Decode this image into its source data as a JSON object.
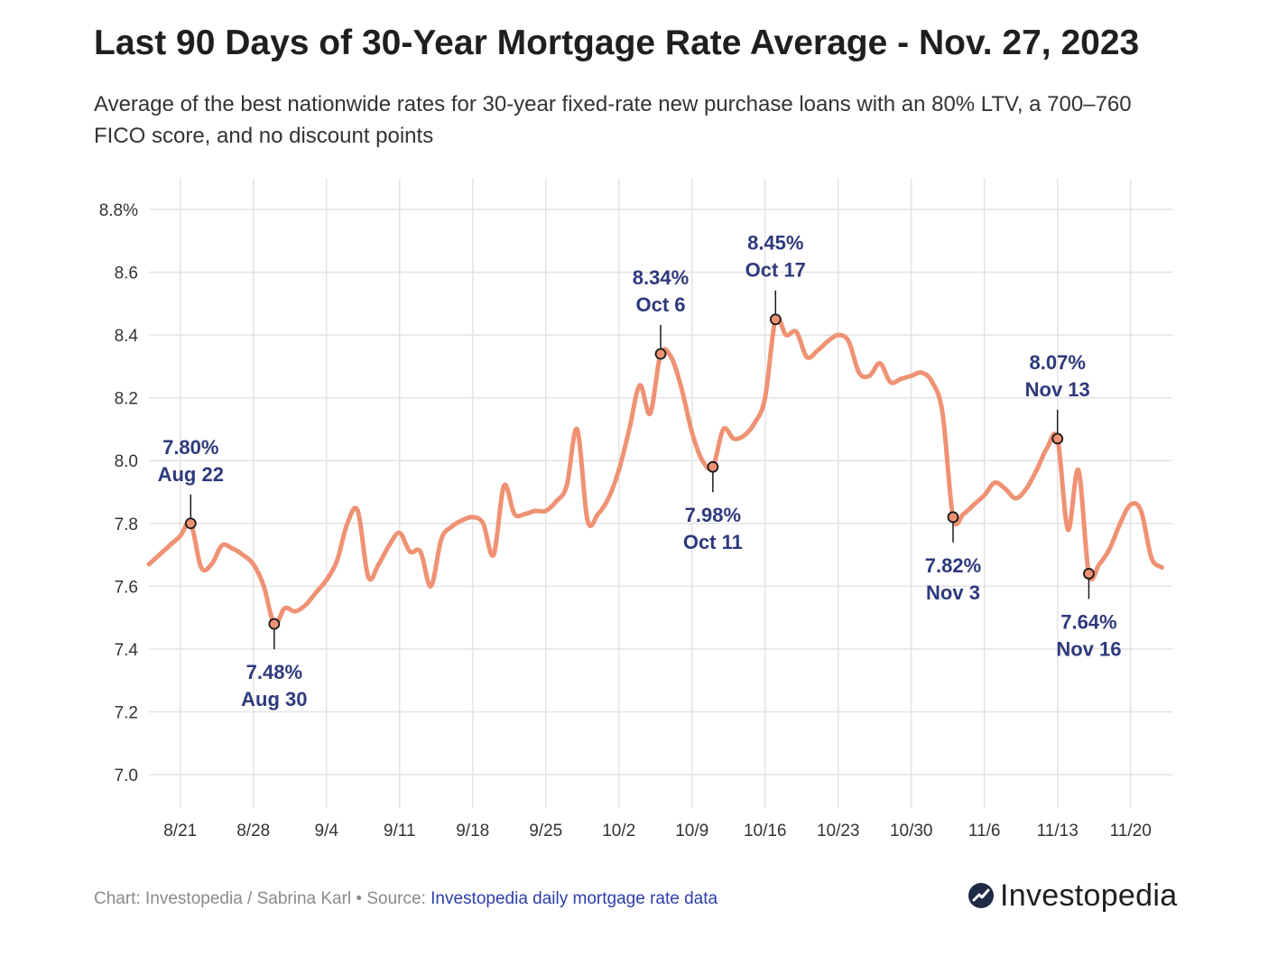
{
  "title": "Last 90 Days of 30-Year Mortgage Rate Average - Nov. 27, 2023",
  "subtitle": "Average of the best nationwide rates for 30-year fixed-rate new purchase loans with an 80% LTV, a 700–760 FICO score, and no discount points",
  "footer": {
    "credit": "Chart: Investopedia / Sabrina Karl • Source: ",
    "source_link": "Investopedia daily mortgage rate data"
  },
  "logo": {
    "text": "Investopedia",
    "icon": "investopedia-logo-icon"
  },
  "chart_data": {
    "type": "line",
    "x_start": "2023-08-18",
    "x_end": "2023-11-24",
    "ylim": [
      7.0,
      8.8
    ],
    "yticks": [
      {
        "value": 7.0,
        "label": "7.0"
      },
      {
        "value": 7.2,
        "label": "7.2"
      },
      {
        "value": 7.4,
        "label": "7.4"
      },
      {
        "value": 7.6,
        "label": "7.6"
      },
      {
        "value": 7.8,
        "label": "7.8"
      },
      {
        "value": 8.0,
        "label": "8.0"
      },
      {
        "value": 8.2,
        "label": "8.2"
      },
      {
        "value": 8.4,
        "label": "8.4"
      },
      {
        "value": 8.6,
        "label": "8.6"
      },
      {
        "value": 8.8,
        "label": "8.8%"
      }
    ],
    "xticks": [
      {
        "date": "2023-08-21",
        "label": "8/21"
      },
      {
        "date": "2023-08-28",
        "label": "8/28"
      },
      {
        "date": "2023-09-04",
        "label": "9/4"
      },
      {
        "date": "2023-09-11",
        "label": "9/11"
      },
      {
        "date": "2023-09-18",
        "label": "9/18"
      },
      {
        "date": "2023-09-25",
        "label": "9/25"
      },
      {
        "date": "2023-10-02",
        "label": "10/2"
      },
      {
        "date": "2023-10-09",
        "label": "10/9"
      },
      {
        "date": "2023-10-16",
        "label": "10/16"
      },
      {
        "date": "2023-10-23",
        "label": "10/23"
      },
      {
        "date": "2023-10-30",
        "label": "10/30"
      },
      {
        "date": "2023-11-06",
        "label": "11/6"
      },
      {
        "date": "2023-11-13",
        "label": "11/13"
      },
      {
        "date": "2023-11-20",
        "label": "11/20"
      }
    ],
    "grid": true,
    "line_color": "#ef9274",
    "annotation_color": "#2e3a7c",
    "series": [
      {
        "points": [
          [
            "2023-08-18",
            7.67
          ],
          [
            "2023-08-19",
            7.7
          ],
          [
            "2023-08-20",
            7.73
          ],
          [
            "2023-08-21",
            7.76
          ],
          [
            "2023-08-22",
            7.8
          ],
          [
            "2023-08-23",
            7.66
          ],
          [
            "2023-08-24",
            7.67
          ],
          [
            "2023-08-25",
            7.73
          ],
          [
            "2023-08-26",
            7.72
          ],
          [
            "2023-08-27",
            7.7
          ],
          [
            "2023-08-28",
            7.67
          ],
          [
            "2023-08-29",
            7.6
          ],
          [
            "2023-08-30",
            7.48
          ],
          [
            "2023-08-31",
            7.53
          ],
          [
            "2023-09-01",
            7.52
          ],
          [
            "2023-09-02",
            7.54
          ],
          [
            "2023-09-03",
            7.58
          ],
          [
            "2023-09-04",
            7.62
          ],
          [
            "2023-09-05",
            7.68
          ],
          [
            "2023-09-06",
            7.8
          ],
          [
            "2023-09-07",
            7.84
          ],
          [
            "2023-09-08",
            7.63
          ],
          [
            "2023-09-09",
            7.67
          ],
          [
            "2023-09-10",
            7.73
          ],
          [
            "2023-09-11",
            7.77
          ],
          [
            "2023-09-12",
            7.71
          ],
          [
            "2023-09-13",
            7.71
          ],
          [
            "2023-09-14",
            7.6
          ],
          [
            "2023-09-15",
            7.75
          ],
          [
            "2023-09-16",
            7.79
          ],
          [
            "2023-09-17",
            7.81
          ],
          [
            "2023-09-18",
            7.82
          ],
          [
            "2023-09-19",
            7.8
          ],
          [
            "2023-09-20",
            7.7
          ],
          [
            "2023-09-21",
            7.92
          ],
          [
            "2023-09-22",
            7.83
          ],
          [
            "2023-09-23",
            7.83
          ],
          [
            "2023-09-24",
            7.84
          ],
          [
            "2023-09-25",
            7.84
          ],
          [
            "2023-09-26",
            7.87
          ],
          [
            "2023-09-27",
            7.92
          ],
          [
            "2023-09-28",
            8.1
          ],
          [
            "2023-09-29",
            7.81
          ],
          [
            "2023-09-30",
            7.83
          ],
          [
            "2023-10-01",
            7.88
          ],
          [
            "2023-10-02",
            7.97
          ],
          [
            "2023-10-03",
            8.1
          ],
          [
            "2023-10-04",
            8.24
          ],
          [
            "2023-10-05",
            8.15
          ],
          [
            "2023-10-06",
            8.34
          ],
          [
            "2023-10-07",
            8.33
          ],
          [
            "2023-10-08",
            8.23
          ],
          [
            "2023-10-09",
            8.09
          ],
          [
            "2023-10-10",
            8.0
          ],
          [
            "2023-10-11",
            7.98
          ],
          [
            "2023-10-12",
            8.1
          ],
          [
            "2023-10-13",
            8.07
          ],
          [
            "2023-10-14",
            8.08
          ],
          [
            "2023-10-15",
            8.12
          ],
          [
            "2023-10-16",
            8.2
          ],
          [
            "2023-10-17",
            8.45
          ],
          [
            "2023-10-18",
            8.4
          ],
          [
            "2023-10-19",
            8.41
          ],
          [
            "2023-10-20",
            8.33
          ],
          [
            "2023-10-21",
            8.35
          ],
          [
            "2023-10-22",
            8.38
          ],
          [
            "2023-10-23",
            8.4
          ],
          [
            "2023-10-24",
            8.38
          ],
          [
            "2023-10-25",
            8.28
          ],
          [
            "2023-10-26",
            8.27
          ],
          [
            "2023-10-27",
            8.31
          ],
          [
            "2023-10-28",
            8.25
          ],
          [
            "2023-10-29",
            8.26
          ],
          [
            "2023-10-30",
            8.27
          ],
          [
            "2023-10-31",
            8.28
          ],
          [
            "2023-11-01",
            8.25
          ],
          [
            "2023-11-02",
            8.15
          ],
          [
            "2023-11-03",
            7.82
          ],
          [
            "2023-11-04",
            7.83
          ],
          [
            "2023-11-05",
            7.86
          ],
          [
            "2023-11-06",
            7.89
          ],
          [
            "2023-11-07",
            7.93
          ],
          [
            "2023-11-08",
            7.91
          ],
          [
            "2023-11-09",
            7.88
          ],
          [
            "2023-11-10",
            7.91
          ],
          [
            "2023-11-11",
            7.97
          ],
          [
            "2023-11-12",
            8.04
          ],
          [
            "2023-11-13",
            8.07
          ],
          [
            "2023-11-14",
            7.78
          ],
          [
            "2023-11-15",
            7.97
          ],
          [
            "2023-11-16",
            7.64
          ],
          [
            "2023-11-17",
            7.67
          ],
          [
            "2023-11-18",
            7.72
          ],
          [
            "2023-11-19",
            7.8
          ],
          [
            "2023-11-20",
            7.86
          ],
          [
            "2023-11-21",
            7.84
          ],
          [
            "2023-11-22",
            7.69
          ],
          [
            "2023-11-23",
            7.66
          ]
        ]
      }
    ],
    "annotations": [
      {
        "date": "2023-08-22",
        "value": 7.8,
        "rate": "7.80%",
        "label": "Aug 22",
        "position": "above"
      },
      {
        "date": "2023-08-30",
        "value": 7.48,
        "rate": "7.48%",
        "label": "Aug 30",
        "position": "below"
      },
      {
        "date": "2023-10-06",
        "value": 8.34,
        "rate": "8.34%",
        "label": "Oct 6",
        "position": "above"
      },
      {
        "date": "2023-10-11",
        "value": 7.98,
        "rate": "7.98%",
        "label": "Oct 11",
        "position": "below"
      },
      {
        "date": "2023-10-17",
        "value": 8.45,
        "rate": "8.45%",
        "label": "Oct 17",
        "position": "above"
      },
      {
        "date": "2023-11-03",
        "value": 7.82,
        "rate": "7.82%",
        "label": "Nov 3",
        "position": "below"
      },
      {
        "date": "2023-11-13",
        "value": 8.07,
        "rate": "8.07%",
        "label": "Nov 13",
        "position": "above"
      },
      {
        "date": "2023-11-16",
        "value": 7.64,
        "rate": "7.64%",
        "label": "Nov 16",
        "position": "below"
      }
    ]
  }
}
